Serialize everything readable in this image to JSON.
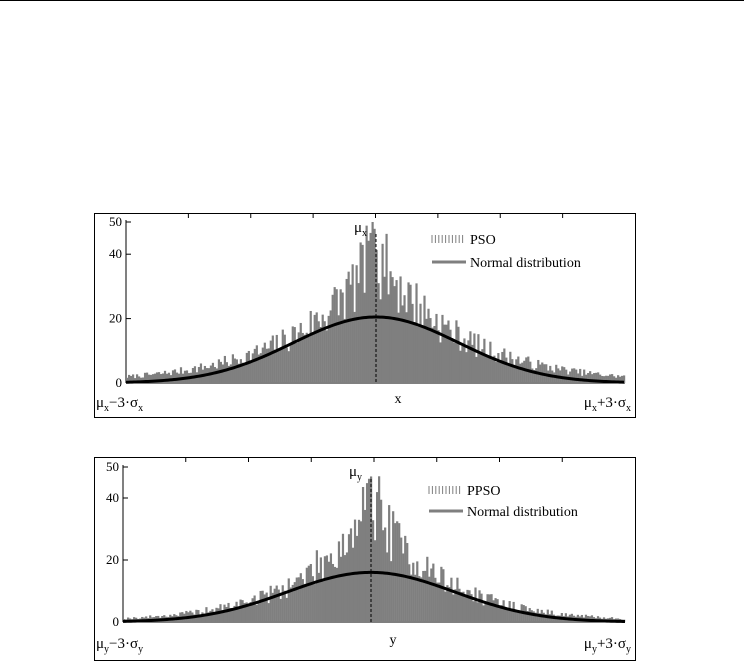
{
  "chart_data": [
    {
      "type": "bar",
      "id": "x",
      "bars_color": "#7f7f7f",
      "curve_color": "#000000",
      "ylim": [
        0,
        50
      ],
      "yticks": [
        "0",
        "20",
        "40",
        "50"
      ],
      "xlabel": "x",
      "xlabel_left": {
        "sym": "μ",
        "sub": "x",
        "mid": "−3·σ",
        "sub2": "x"
      },
      "xlabel_right": {
        "sym": "μ",
        "sub": "x",
        "mid": "+3·σ",
        "sub2": "x"
      },
      "mean_label": {
        "sym": "μ",
        "sub": "x"
      },
      "legend": [
        {
          "name": "PSO",
          "kind": "bars"
        },
        {
          "name": "Normal distribution",
          "kind": "line"
        }
      ],
      "legend_position": "top-right",
      "series": [
        {
          "name": "PSO",
          "kind": "histogram",
          "peak": 40,
          "spread": 0.165,
          "noise": 0.32
        },
        {
          "name": "Normal distribution",
          "kind": "gaussian",
          "peak": 20.5,
          "sigma_fraction": 0.3333
        }
      ]
    },
    {
      "type": "bar",
      "id": "y",
      "bars_color": "#7f7f7f",
      "curve_color": "#000000",
      "ylim": [
        0,
        50
      ],
      "yticks": [
        "0",
        "20",
        "40",
        "50"
      ],
      "xlabel": "y",
      "xlabel_left": {
        "sym": "μ",
        "sub": "y",
        "mid": "−3·σ",
        "sub2": "y"
      },
      "xlabel_right": {
        "sym": "μ",
        "sub": "y",
        "mid": "+3·σ",
        "sub2": "y"
      },
      "mean_label": {
        "sym": "μ",
        "sub": "y"
      },
      "legend": [
        {
          "name": "PPSO",
          "kind": "bars"
        },
        {
          "name": "Normal distribution",
          "kind": "line"
        }
      ],
      "legend_position": "top-right",
      "series": [
        {
          "name": "PPSO",
          "kind": "histogram",
          "peak": 38,
          "spread": 0.14,
          "noise": 0.32
        },
        {
          "name": "Normal distribution",
          "kind": "gaussian",
          "peak": 16,
          "sigma_fraction": 0.3333
        }
      ]
    }
  ]
}
